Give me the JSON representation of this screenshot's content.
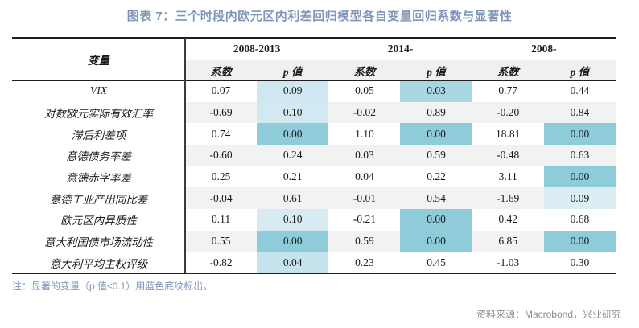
{
  "title": "图表 7：三个时段内欧元区内利差回归模型各自变量回归系数与显著性",
  "note": "注：显著的变量（p 值≤0.1）用蓝色底纹标出。",
  "source": "资料来源：Macrobond，兴业研究",
  "colors": {
    "title": "#7d96b8",
    "note": "#7d96b8",
    "source": "#8c8c8c",
    "stripe": "#f2f2f2",
    "header_band": "#f0f0f0",
    "highlight_strong": "#8fccda"
  },
  "chart_data": {
    "type": "table",
    "title": "图表 7：三个时段内欧元区内利差回归模型各自变量回归系数与显著性",
    "variable_column_header": "变量",
    "groups": [
      "2008-2013",
      "2014-",
      "2008-"
    ],
    "subcolumns": [
      "系数",
      "p 值"
    ],
    "highlight_rule": "p 值 ≤ 0.1 的单元格以蓝色底纹标出，颜色越深 p 值越小",
    "rows": [
      {
        "variable": "VIX",
        "values": [
          "0.07",
          "0.09",
          "0.05",
          "0.03",
          "0.77",
          "0.44"
        ],
        "p_highlights": [
          "#cfe7f0",
          "#a8d7e3",
          null
        ]
      },
      {
        "variable": "对数欧元实际有效汇率",
        "values": [
          "-0.69",
          "0.10",
          "-0.02",
          "0.89",
          "-0.20",
          "0.84"
        ],
        "p_highlights": [
          "#d3e9f1",
          null,
          null
        ]
      },
      {
        "variable": "滞后利差项",
        "values": [
          "0.74",
          "0.00",
          "1.10",
          "0.00",
          "18.81",
          "0.00"
        ],
        "p_highlights": [
          "#8fccda",
          "#8fccda",
          "#8fccda"
        ]
      },
      {
        "variable": "意德债务率差",
        "values": [
          "-0.60",
          "0.24",
          "0.03",
          "0.59",
          "-0.48",
          "0.63"
        ],
        "p_highlights": [
          null,
          null,
          null
        ]
      },
      {
        "variable": "意德赤字率差",
        "values": [
          "0.25",
          "0.21",
          "0.04",
          "0.22",
          "3.11",
          "0.00"
        ],
        "p_highlights": [
          null,
          null,
          "#8fccda"
        ]
      },
      {
        "variable": "意德工业产出同比差",
        "values": [
          "-0.04",
          "0.61",
          "-0.01",
          "0.54",
          "-1.69",
          "0.09"
        ],
        "p_highlights": [
          null,
          null,
          "#dceef4"
        ]
      },
      {
        "variable": "欧元区内异质性",
        "values": [
          "0.11",
          "0.10",
          "-0.21",
          "0.00",
          "0.42",
          "0.68"
        ],
        "p_highlights": [
          "#d8ebf2",
          "#8fccda",
          null
        ]
      },
      {
        "variable": "意大利国债市场流动性",
        "values": [
          "0.55",
          "0.00",
          "0.59",
          "0.00",
          "6.85",
          "0.00"
        ],
        "p_highlights": [
          "#8fccda",
          "#8fccda",
          "#8fccda"
        ]
      },
      {
        "variable": "意大利平均主权评级",
        "values": [
          "-0.82",
          "0.04",
          "0.23",
          "0.45",
          "-1.03",
          "0.30"
        ],
        "p_highlights": [
          "#c4e3ed",
          null,
          null
        ]
      }
    ]
  }
}
